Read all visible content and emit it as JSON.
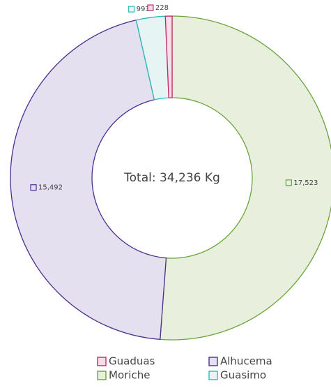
{
  "chart_data": {
    "type": "donut",
    "center_label": "Total: 34,236 Kg",
    "categories": [
      "Moriche",
      "Alhucema",
      "Guasimo",
      "Guaduas"
    ],
    "values": [
      17523,
      15492,
      993,
      228
    ],
    "value_labels": [
      "17,523",
      "15,492",
      "993",
      "228"
    ],
    "colors": [
      "#6aa43a",
      "#4b2e8e",
      "#2bbcb8",
      "#c8246a"
    ],
    "fills": [
      "#e8efdc",
      "#e4e0f0",
      "#e6f5f4",
      "#f6dde6"
    ],
    "legend_order": [
      3,
      1,
      0,
      2
    ]
  }
}
